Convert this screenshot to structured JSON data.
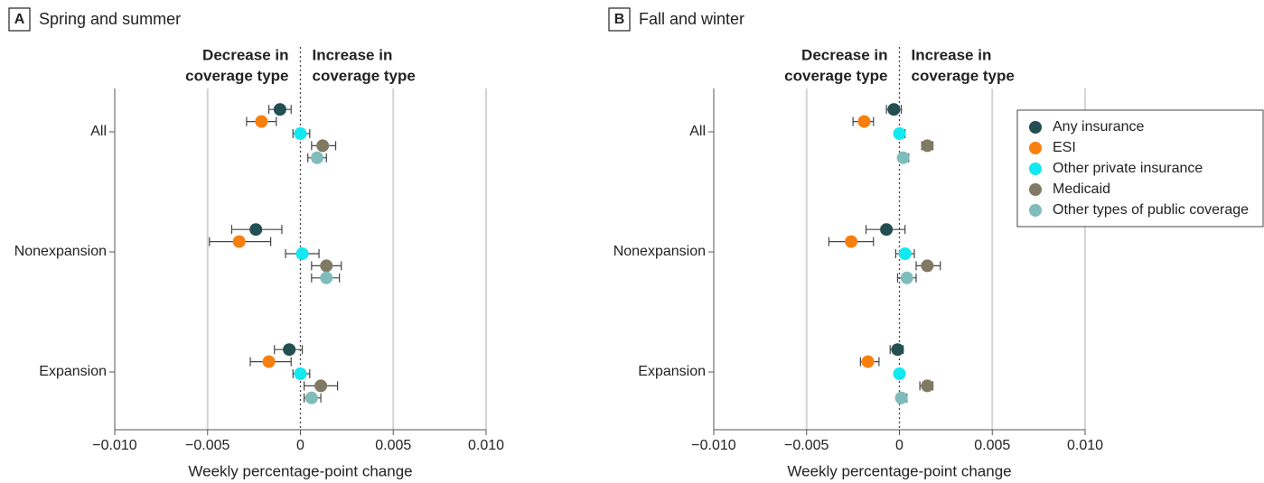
{
  "chart_data": [
    {
      "type": "forest",
      "panel": "A",
      "title": "Spring and summer",
      "annotation_left": [
        "Decrease in",
        "coverage type"
      ],
      "annotation_right": [
        "Increase in",
        "coverage type"
      ],
      "x_label": "Weekly percentage-point change",
      "categories": [
        "All",
        "Nonexpansion",
        "Expansion"
      ],
      "xlim": [
        -0.01,
        0.01
      ],
      "xticks": [
        {
          "value": -0.01,
          "label": "−0.010"
        },
        {
          "value": -0.005,
          "label": "−0.005"
        },
        {
          "value": 0,
          "label": "0"
        },
        {
          "value": 0.005,
          "label": "0.005"
        },
        {
          "value": 0.01,
          "label": "0.010"
        }
      ],
      "vline": 0,
      "grid": true,
      "series": [
        {
          "color": "#234e52",
          "values": [
            -0.0011,
            -0.0024,
            -0.0006
          ],
          "ci_low": [
            -0.0017,
            -0.0037,
            -0.0014
          ],
          "ci_high": [
            -0.0005,
            -0.001,
            0.0001
          ]
        },
        {
          "color": "#f77f0e",
          "values": [
            -0.0021,
            -0.0033,
            -0.0017
          ],
          "ci_low": [
            -0.0029,
            -0.0049,
            -0.0027
          ],
          "ci_high": [
            -0.0013,
            -0.0016,
            -0.0005
          ]
        },
        {
          "color": "#12e8f0",
          "values": [
            0.0,
            0.0001,
            0.0
          ],
          "ci_low": [
            -0.0004,
            -0.0008,
            -0.0004
          ],
          "ci_high": [
            0.0005,
            0.001,
            0.0005
          ]
        },
        {
          "color": "#807a64",
          "values": [
            0.0012,
            0.0014,
            0.0011
          ],
          "ci_low": [
            0.0006,
            0.0006,
            0.0002
          ],
          "ci_high": [
            0.0019,
            0.0022,
            0.002
          ]
        },
        {
          "color": "#7fbcbc",
          "values": [
            0.0009,
            0.0014,
            0.0006
          ],
          "ci_low": [
            0.0004,
            0.0006,
            0.0002
          ],
          "ci_high": [
            0.0014,
            0.0021,
            0.0011
          ]
        }
      ]
    },
    {
      "type": "forest",
      "panel": "B",
      "title": "Fall and winter",
      "annotation_left": [
        "Decrease in",
        "coverage type"
      ],
      "annotation_right": [
        "Increase in",
        "coverage type"
      ],
      "x_label": "Weekly percentage-point change",
      "categories": [
        "All",
        "Nonexpansion",
        "Expansion"
      ],
      "xlim": [
        -0.01,
        0.01
      ],
      "xticks": [
        {
          "value": -0.01,
          "label": "−0.010"
        },
        {
          "value": -0.005,
          "label": "−0.005"
        },
        {
          "value": 0,
          "label": "0"
        },
        {
          "value": 0.005,
          "label": "0.005"
        },
        {
          "value": 0.01,
          "label": "0.010"
        }
      ],
      "vline": 0,
      "grid": true,
      "legend": "upper right",
      "series": [
        {
          "name": "Any insurance",
          "color": "#234e52",
          "values": [
            -0.0003,
            -0.0007,
            -0.0001
          ],
          "ci_low": [
            -0.0007,
            -0.0018,
            -0.0005
          ],
          "ci_high": [
            0.0001,
            0.0003,
            0.0002
          ]
        },
        {
          "name": "ESI",
          "color": "#f77f0e",
          "values": [
            -0.0019,
            -0.0026,
            -0.0017
          ],
          "ci_low": [
            -0.0025,
            -0.0038,
            -0.0021
          ],
          "ci_high": [
            -0.0014,
            -0.0014,
            -0.0011
          ]
        },
        {
          "name": "Other private insurance",
          "color": "#12e8f0",
          "values": [
            0.0,
            0.0003,
            0.0
          ],
          "ci_low": [
            -0.0002,
            -0.0002,
            -0.0002
          ],
          "ci_high": [
            0.0003,
            0.0008,
            0.0002
          ]
        },
        {
          "name": "Medicaid",
          "color": "#807a64",
          "values": [
            0.0015,
            0.0015,
            0.0015
          ],
          "ci_low": [
            0.0012,
            0.0009,
            0.0011
          ],
          "ci_high": [
            0.0018,
            0.0022,
            0.0018
          ]
        },
        {
          "name": "Other types of public coverage",
          "color": "#7fbcbc",
          "values": [
            0.0002,
            0.0004,
            0.0001
          ],
          "ci_low": [
            0.0,
            -0.0001,
            -0.0001
          ],
          "ci_high": [
            0.0005,
            0.0009,
            0.0004
          ]
        }
      ]
    }
  ]
}
